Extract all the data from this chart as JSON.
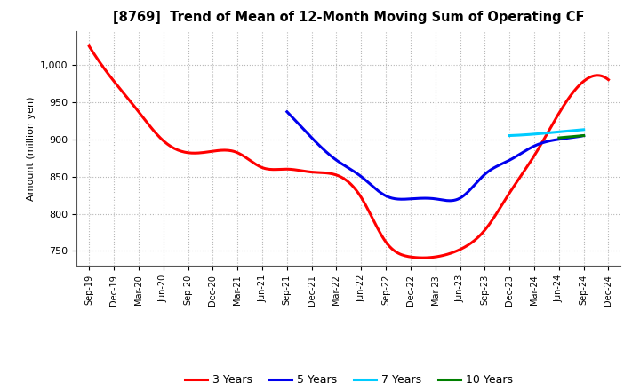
{
  "title": "[8769]  Trend of Mean of 12-Month Moving Sum of Operating CF",
  "ylabel": "Amount (million yen)",
  "background_color": "#ffffff",
  "grid_color": "#b0b0b0",
  "ylim": [
    730,
    1045
  ],
  "yticks": [
    750,
    800,
    850,
    900,
    950,
    1000
  ],
  "series": {
    "3 Years": {
      "color": "#ff0000",
      "x": [
        0,
        1,
        2,
        3,
        4,
        5,
        6,
        7,
        8,
        9,
        10,
        11,
        12,
        13,
        14,
        15,
        16,
        17,
        18,
        19,
        20,
        21
      ],
      "y": [
        1025,
        978,
        937,
        898,
        882,
        884,
        882,
        862,
        860,
        856,
        852,
        822,
        762,
        742,
        742,
        752,
        778,
        828,
        878,
        935,
        978,
        980
      ]
    },
    "5 Years": {
      "color": "#0000ee",
      "x": [
        8,
        9,
        10,
        11,
        12,
        13,
        14,
        15,
        16,
        17,
        18,
        19,
        20
      ],
      "y": [
        937,
        902,
        872,
        850,
        824,
        820,
        820,
        821,
        853,
        872,
        891,
        900,
        905
      ]
    },
    "7 Years": {
      "color": "#00ccff",
      "x": [
        17,
        18,
        19,
        20
      ],
      "y": [
        905,
        907,
        910,
        913
      ]
    },
    "10 Years": {
      "color": "#008000",
      "x": [
        19,
        20
      ],
      "y": [
        902,
        905
      ]
    }
  },
  "xtick_labels": [
    "Sep-19",
    "Dec-19",
    "Mar-20",
    "Jun-20",
    "Sep-20",
    "Dec-20",
    "Mar-21",
    "Jun-21",
    "Sep-21",
    "Dec-21",
    "Mar-22",
    "Jun-22",
    "Sep-22",
    "Dec-22",
    "Mar-23",
    "Jun-23",
    "Sep-23",
    "Dec-23",
    "Mar-24",
    "Jun-24",
    "Sep-24",
    "Dec-24"
  ],
  "legend_labels": [
    "3 Years",
    "5 Years",
    "7 Years",
    "10 Years"
  ],
  "legend_colors": [
    "#ff0000",
    "#0000ee",
    "#00ccff",
    "#008000"
  ]
}
